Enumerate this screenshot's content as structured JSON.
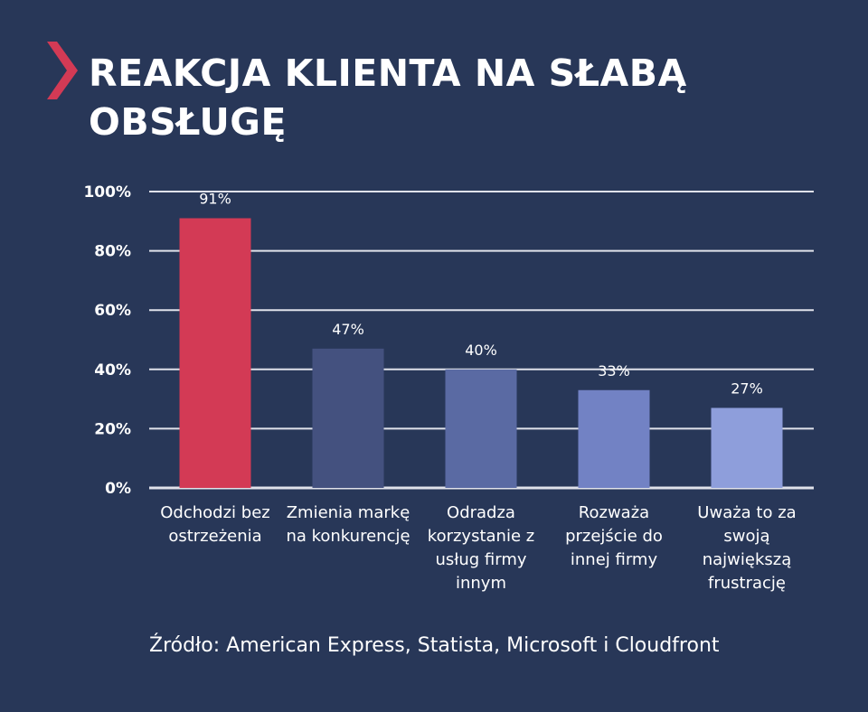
{
  "title": "REAKCJA KLIENTA NA SŁABĄ OBSŁUGĘ",
  "source": "Źródło: American Express, Statista, Microsoft i Cloudfront",
  "colors": {
    "background": "#283758",
    "accent": "#d33a55",
    "grid": "#e0e2ea"
  },
  "chart_data": {
    "type": "bar",
    "title": "REAKCJA KLIENTA NA SŁABĄ OBSŁUGĘ",
    "categories": [
      "Odchodzi bez ostrzeżenia",
      "Zmienia markę na konkurencję",
      "Odradza korzystanie z usług firmy innym",
      "Rozważa przejście do innej firmy",
      "Uważa to za swoją największą frustrację"
    ],
    "values": [
      91,
      47,
      40,
      33,
      27
    ],
    "data_labels": [
      "91%",
      "47%",
      "40%",
      "33%",
      "27%"
    ],
    "bar_colors": [
      "#d33a55",
      "#44517f",
      "#5a6aa3",
      "#7282c4",
      "#8e9edb"
    ],
    "ylim": [
      0,
      100
    ],
    "yticks": [
      0,
      20,
      40,
      60,
      80,
      100
    ],
    "ytick_labels": [
      "0%",
      "20%",
      "40%",
      "60%",
      "80%",
      "100%"
    ],
    "grid": true,
    "xlabel": "",
    "ylabel": ""
  }
}
